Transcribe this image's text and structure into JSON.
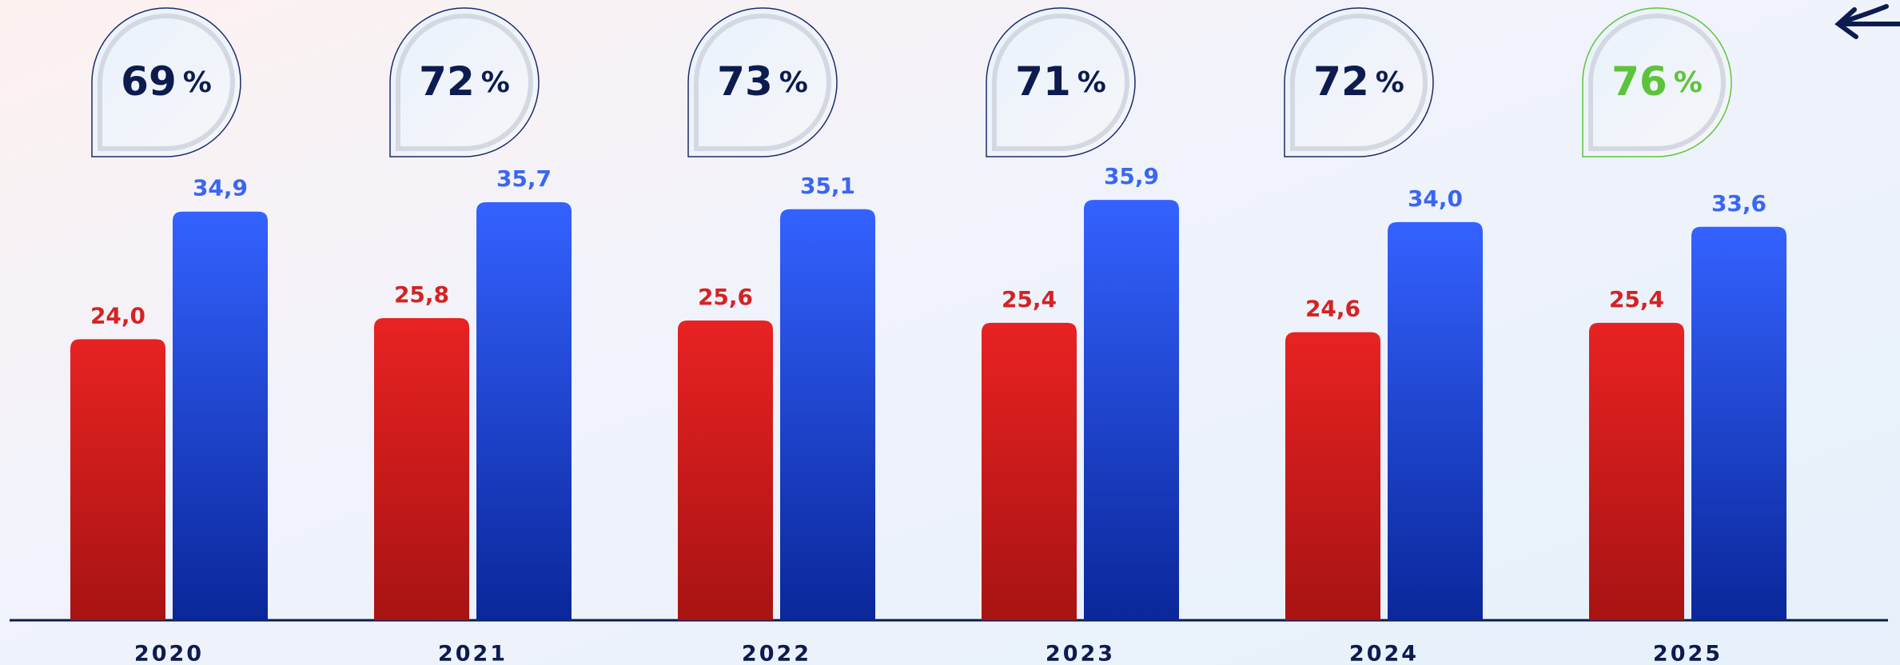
{
  "chart_data": {
    "type": "bar",
    "categories": [
      "2020",
      "2021",
      "2022",
      "2023",
      "2024",
      "2025"
    ],
    "series": [
      {
        "color": "#e21f1f",
        "values": [
          24.0,
          25.8,
          25.6,
          25.4,
          24.6,
          25.4
        ],
        "value_labels": [
          "24,0",
          "25,8",
          "25,6",
          "25,4",
          "24,6",
          "25,4"
        ]
      },
      {
        "color": "#3360ff",
        "values": [
          34.9,
          35.7,
          35.1,
          35.9,
          34.0,
          33.6
        ],
        "value_labels": [
          "34,9",
          "35,7",
          "35,1",
          "35,9",
          "34,0",
          "33,6"
        ]
      }
    ],
    "ylim": [
      0,
      40
    ],
    "bubble_values": [
      69,
      72,
      73,
      71,
      72,
      76
    ],
    "bubble_unit": "%",
    "bubble_color": "#0d1b4f",
    "highlight_color": "#5cc43c",
    "highlight_index": 5
  }
}
